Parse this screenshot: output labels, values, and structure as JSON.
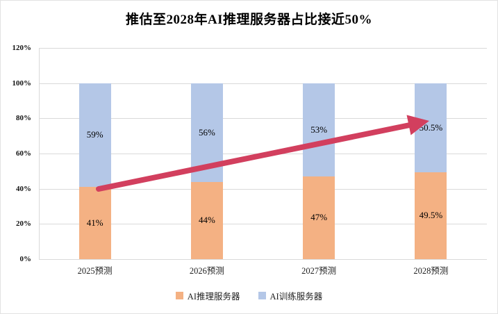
{
  "chart_data": {
    "type": "bar",
    "stacked": true,
    "title": "推估至2028年AI推理服务器占比接近50%",
    "categories": [
      "2025预测",
      "2026预测",
      "2027预测",
      "2028预测"
    ],
    "series": [
      {
        "name": "AI推理服务器",
        "color": "#F4B183",
        "values": [
          41,
          44,
          47,
          49.5
        ],
        "labels": [
          "41%",
          "44%",
          "47%",
          "49.5%"
        ]
      },
      {
        "name": "AI训练服务器",
        "color": "#B4C7E7",
        "values": [
          59,
          56,
          53,
          50.5
        ],
        "labels": [
          "59%",
          "56%",
          "53%",
          "50.5%"
        ]
      }
    ],
    "y_ticks": [
      "0%",
      "20%",
      "40%",
      "60%",
      "80%",
      "100%",
      "120%"
    ],
    "ylim": [
      0,
      120
    ],
    "grid": true,
    "legend_position": "bottom",
    "annotation": {
      "type": "trend-arrow",
      "direction": "up-right",
      "color": "#D23F5E"
    }
  }
}
